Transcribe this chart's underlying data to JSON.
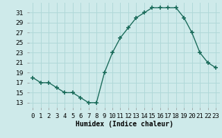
{
  "x": [
    0,
    1,
    2,
    3,
    4,
    5,
    6,
    7,
    8,
    9,
    10,
    11,
    12,
    13,
    14,
    15,
    16,
    17,
    18,
    19,
    20,
    21,
    22,
    23
  ],
  "y": [
    18,
    17,
    17,
    16,
    15,
    15,
    14,
    13,
    13,
    19,
    23,
    26,
    28,
    30,
    31,
    32,
    32,
    32,
    32,
    30,
    27,
    23,
    21,
    20
  ],
  "line_color": "#1a6b5a",
  "marker": "+",
  "marker_size": 4,
  "marker_lw": 1.2,
  "line_width": 1.0,
  "bg_color": "#ceeaea",
  "grid_color": "#b0d8d8",
  "xlabel": "Humidex (Indice chaleur)",
  "xlim": [
    -0.5,
    23.5
  ],
  "ylim": [
    12,
    33
  ],
  "yticks": [
    13,
    15,
    17,
    19,
    21,
    23,
    25,
    27,
    29,
    31
  ],
  "xlabel_fontsize": 7,
  "tick_fontsize": 6.5
}
